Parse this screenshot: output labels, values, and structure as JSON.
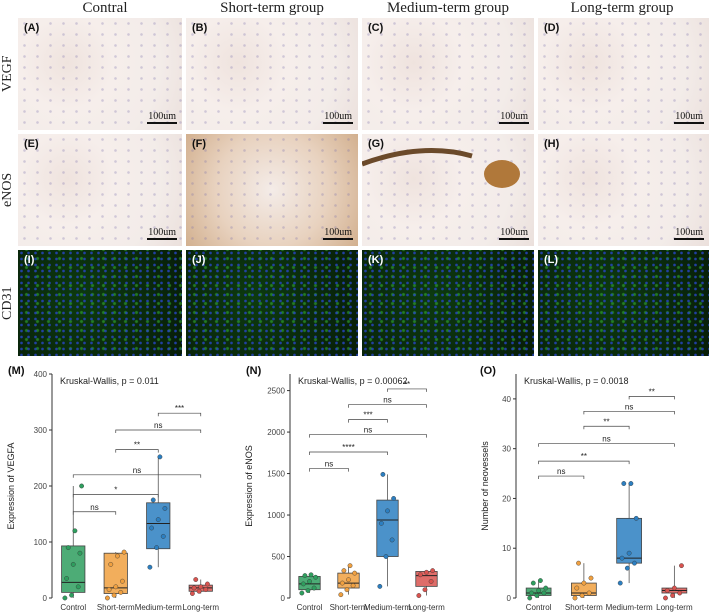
{
  "columns": [
    "Contral",
    "Short-term group",
    "Medium-term group",
    "Long-term group"
  ],
  "rows": [
    "VEGF",
    "eNOS",
    "CD31"
  ],
  "panel_labels": [
    "(A)",
    "(B)",
    "(C)",
    "(D)",
    "(E)",
    "(F)",
    "(G)",
    "(H)",
    "(I)",
    "(J)",
    "(K)",
    "(L)"
  ],
  "scale_bar": "100um",
  "colors": {
    "control": "#2e9e5e",
    "short": "#f0a040",
    "medium": "#2c7fc1",
    "long": "#d9534f"
  },
  "chart_data": [
    {
      "type": "box",
      "panel": "(M)",
      "title": "Kruskal-Wallis, p = 0.011",
      "ylabel": "Expression of VEGFA",
      "xlabel": "",
      "categories": [
        "Control",
        "Short-term",
        "Medium-term",
        "Long-term"
      ],
      "ylim": [
        0,
        400
      ],
      "yticks": [
        0,
        100,
        200,
        300,
        400
      ],
      "boxes": [
        {
          "min": 0,
          "q1": 10,
          "median": 28,
          "q3": 93,
          "max": 200
        },
        {
          "min": 0,
          "q1": 8,
          "median": 18,
          "q3": 80,
          "max": 82
        },
        {
          "min": 55,
          "q1": 88,
          "median": 133,
          "q3": 170,
          "max": 252
        },
        {
          "min": 8,
          "q1": 12,
          "median": 18,
          "q3": 23,
          "max": 33
        }
      ],
      "points": [
        [
          0,
          5,
          20,
          35,
          60,
          80,
          90,
          120,
          200
        ],
        [
          0,
          5,
          10,
          15,
          20,
          30,
          60,
          75,
          82
        ],
        [
          55,
          90,
          110,
          125,
          140,
          160,
          175,
          252
        ],
        [
          8,
          12,
          15,
          18,
          20,
          25,
          33
        ]
      ],
      "comparisons": [
        {
          "from": 0,
          "to": 1,
          "y": 154,
          "label": "ns"
        },
        {
          "from": 0,
          "to": 2,
          "y": 185,
          "label": "*"
        },
        {
          "from": 0,
          "to": 3,
          "y": 220,
          "label": "ns"
        },
        {
          "from": 1,
          "to": 2,
          "y": 265,
          "label": "**"
        },
        {
          "from": 1,
          "to": 3,
          "y": 300,
          "label": "ns"
        },
        {
          "from": 2,
          "to": 3,
          "y": 330,
          "label": "***"
        }
      ]
    },
    {
      "type": "box",
      "panel": "(N)",
      "title": "Kruskal-Wallis, p = 0.00062",
      "ylabel": "Expression of eNOS",
      "xlabel": "",
      "categories": [
        "Control",
        "Short-term",
        "Medium-term",
        "Long-term"
      ],
      "ylim": [
        0,
        2700
      ],
      "yticks": [
        0,
        500,
        1000,
        1500,
        2000,
        2500
      ],
      "boxes": [
        {
          "min": 60,
          "q1": 100,
          "median": 170,
          "q3": 260,
          "max": 280
        },
        {
          "min": 40,
          "q1": 120,
          "median": 180,
          "q3": 300,
          "max": 390
        },
        {
          "min": 140,
          "q1": 500,
          "median": 940,
          "q3": 1180,
          "max": 1490
        },
        {
          "min": 30,
          "q1": 140,
          "median": 270,
          "q3": 320,
          "max": 330
        }
      ],
      "points": [
        [
          60,
          90,
          120,
          170,
          200,
          250,
          270,
          280
        ],
        [
          40,
          100,
          150,
          180,
          220,
          300,
          330,
          390
        ],
        [
          140,
          500,
          700,
          900,
          1050,
          1200,
          1490
        ],
        [
          30,
          100,
          200,
          280,
          310,
          330
        ]
      ],
      "comparisons": [
        {
          "from": 0,
          "to": 1,
          "y": 1560,
          "label": "ns"
        },
        {
          "from": 0,
          "to": 2,
          "y": 1760,
          "label": "****"
        },
        {
          "from": 0,
          "to": 3,
          "y": 1970,
          "label": "ns"
        },
        {
          "from": 1,
          "to": 2,
          "y": 2150,
          "label": "***"
        },
        {
          "from": 1,
          "to": 3,
          "y": 2330,
          "label": "ns"
        },
        {
          "from": 2,
          "to": 3,
          "y": 2520,
          "label": "**"
        }
      ]
    },
    {
      "type": "box",
      "panel": "(O)",
      "title": "Kruskal-Wallis, p = 0.0018",
      "ylabel": "Number of neovessels",
      "xlabel": "",
      "categories": [
        "Control",
        "Short-term",
        "Medium-term",
        "Long-term"
      ],
      "ylim": [
        0,
        45
      ],
      "yticks": [
        0,
        10,
        20,
        30,
        40
      ],
      "boxes": [
        {
          "min": 0,
          "q1": 0.5,
          "median": 1,
          "q3": 2,
          "max": 3.5
        },
        {
          "min": 0,
          "q1": 0.5,
          "median": 1,
          "q3": 3,
          "max": 7
        },
        {
          "min": 3,
          "q1": 7,
          "median": 8,
          "q3": 16,
          "max": 23
        },
        {
          "min": 0,
          "q1": 1,
          "median": 1.5,
          "q3": 2,
          "max": 6.5
        }
      ],
      "points": [
        [
          0,
          0.5,
          1,
          1,
          1.5,
          2,
          3,
          3.5
        ],
        [
          0,
          0.5,
          1,
          2,
          3,
          4,
          7
        ],
        [
          3,
          6,
          7,
          8,
          9,
          16,
          23,
          23
        ],
        [
          0,
          0.5,
          1,
          1.5,
          2,
          6.5
        ]
      ],
      "comparisons": [
        {
          "from": 0,
          "to": 1,
          "y": 24.5,
          "label": "ns"
        },
        {
          "from": 0,
          "to": 2,
          "y": 27.5,
          "label": "**"
        },
        {
          "from": 0,
          "to": 3,
          "y": 31,
          "label": "ns"
        },
        {
          "from": 1,
          "to": 2,
          "y": 34.5,
          "label": "**"
        },
        {
          "from": 1,
          "to": 3,
          "y": 37.5,
          "label": "ns"
        },
        {
          "from": 2,
          "to": 3,
          "y": 40.5,
          "label": "**"
        }
      ]
    }
  ]
}
